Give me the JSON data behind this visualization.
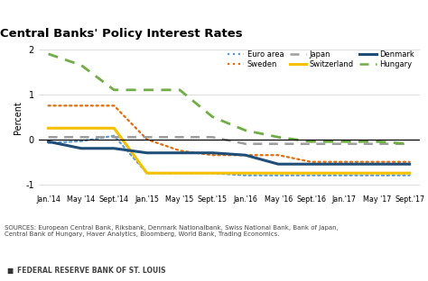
{
  "title": "Central Banks' Policy Interest Rates",
  "ylabel": "Percent",
  "ylim": [
    -1.15,
    2.1
  ],
  "yticks": [
    -1,
    0,
    1,
    2
  ],
  "source_text": "SOURCES: European Central Bank, Riksbank, Denmark Nationalbank, Swiss National Bank, Bank of Japan,\nCentral Bank of Hungary, Haver Analytics, Bloomberg, World Bank, Trading Economics.",
  "footer_text": "FEDERAL RESERVE BANK OF ST. LOUIS",
  "xtick_labels": [
    "Jan.'14",
    "May '14",
    "Sept.'14",
    "Jan.'15",
    "May '15",
    "Sept.'15",
    "Jan.'16",
    "May '16",
    "Sept.'16",
    "Jan.'17",
    "May '17",
    "Sept.'17"
  ],
  "legend_order": [
    "euro_area",
    "sweden",
    "japan",
    "switzerland",
    "denmark",
    "hungary"
  ],
  "series": {
    "euro_area": {
      "label": "Euro area",
      "color": "#5B9BD5",
      "linestyle": "dotted",
      "linewidth": 1.6,
      "data": [
        [
          0,
          -0.08
        ],
        [
          1,
          -0.04
        ],
        [
          2,
          0.08
        ],
        [
          3,
          -0.75
        ],
        [
          4,
          -0.75
        ],
        [
          5,
          -0.75
        ],
        [
          6,
          -0.8
        ],
        [
          7,
          -0.8
        ],
        [
          8,
          -0.8
        ],
        [
          9,
          -0.8
        ],
        [
          10,
          -0.8
        ],
        [
          11,
          -0.8
        ]
      ]
    },
    "sweden": {
      "label": "Sweden",
      "color": "#E36C09",
      "linestyle": "dotted",
      "linewidth": 1.6,
      "data": [
        [
          0,
          0.75
        ],
        [
          1,
          0.75
        ],
        [
          2,
          0.75
        ],
        [
          3,
          0.0
        ],
        [
          4,
          -0.25
        ],
        [
          5,
          -0.35
        ],
        [
          6,
          -0.35
        ],
        [
          7,
          -0.35
        ],
        [
          8,
          -0.5
        ],
        [
          9,
          -0.5
        ],
        [
          10,
          -0.5
        ],
        [
          11,
          -0.5
        ]
      ]
    },
    "japan": {
      "label": "Japan",
      "color": "#9E9E9E",
      "linestyle": "dashed",
      "linewidth": 1.8,
      "data": [
        [
          0,
          0.05
        ],
        [
          1,
          0.05
        ],
        [
          2,
          0.05
        ],
        [
          3,
          0.05
        ],
        [
          4,
          0.05
        ],
        [
          5,
          0.05
        ],
        [
          6,
          -0.1
        ],
        [
          7,
          -0.1
        ],
        [
          8,
          -0.1
        ],
        [
          9,
          -0.1
        ],
        [
          10,
          -0.1
        ],
        [
          11,
          -0.1
        ]
      ]
    },
    "switzerland": {
      "label": "Switzerland",
      "color": "#F5C000",
      "linestyle": "solid",
      "linewidth": 2.2,
      "data": [
        [
          0,
          0.25
        ],
        [
          1,
          0.25
        ],
        [
          2,
          0.25
        ],
        [
          3,
          -0.75
        ],
        [
          4,
          -0.75
        ],
        [
          5,
          -0.75
        ],
        [
          6,
          -0.75
        ],
        [
          7,
          -0.75
        ],
        [
          8,
          -0.75
        ],
        [
          9,
          -0.75
        ],
        [
          10,
          -0.75
        ],
        [
          11,
          -0.75
        ]
      ]
    },
    "denmark": {
      "label": "Denmark",
      "color": "#1F4E79",
      "linestyle": "solid",
      "linewidth": 2.2,
      "data": [
        [
          0,
          -0.05
        ],
        [
          1,
          -0.2
        ],
        [
          2,
          -0.2
        ],
        [
          3,
          -0.3
        ],
        [
          4,
          -0.3
        ],
        [
          5,
          -0.3
        ],
        [
          6,
          -0.35
        ],
        [
          7,
          -0.55
        ],
        [
          8,
          -0.55
        ],
        [
          9,
          -0.55
        ],
        [
          10,
          -0.55
        ],
        [
          11,
          -0.55
        ]
      ]
    },
    "hungary": {
      "label": "Hungary",
      "color": "#70AD47",
      "linestyle": "dashed",
      "linewidth": 2.0,
      "data": [
        [
          0,
          1.9
        ],
        [
          1,
          1.65
        ],
        [
          2,
          1.1
        ],
        [
          3,
          1.1
        ],
        [
          4,
          1.1
        ],
        [
          5,
          0.5
        ],
        [
          6,
          0.2
        ],
        [
          7,
          0.05
        ],
        [
          8,
          -0.05
        ],
        [
          9,
          -0.05
        ],
        [
          10,
          -0.05
        ],
        [
          11,
          -0.1
        ]
      ]
    }
  }
}
